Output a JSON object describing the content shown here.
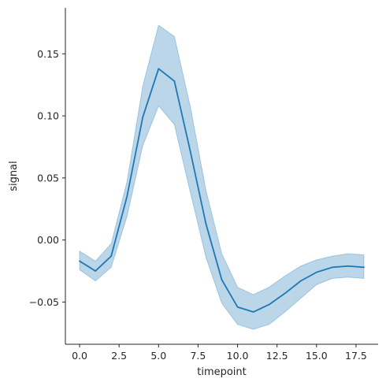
{
  "chart_data": {
    "type": "line",
    "xlabel": "timepoint",
    "ylabel": "signal",
    "xlim": [
      -0.9,
      18.9
    ],
    "ylim": [
      -0.084,
      0.187
    ],
    "x_ticks": [
      {
        "value": 0.0,
        "label": "0.0"
      },
      {
        "value": 2.5,
        "label": "2.5"
      },
      {
        "value": 5.0,
        "label": "5.0"
      },
      {
        "value": 7.5,
        "label": "7.5"
      },
      {
        "value": 10.0,
        "label": "10.0"
      },
      {
        "value": 12.5,
        "label": "12.5"
      },
      {
        "value": 15.0,
        "label": "15.0"
      },
      {
        "value": 17.5,
        "label": "17.5"
      }
    ],
    "y_ticks": [
      {
        "value": -0.05,
        "label": "−0.05"
      },
      {
        "value": 0.0,
        "label": "0.00"
      },
      {
        "value": 0.05,
        "label": "0.05"
      },
      {
        "value": 0.1,
        "label": "0.10"
      },
      {
        "value": 0.15,
        "label": "0.15"
      }
    ],
    "grid": false,
    "line_color": "#1f77b4",
    "band_color": "#1f77b4",
    "series": [
      {
        "x": [
          0,
          1,
          2,
          3,
          4,
          5,
          6,
          7,
          8,
          9,
          10,
          11,
          12,
          13,
          14,
          15,
          16,
          17,
          18
        ],
        "values": [
          -0.017,
          -0.025,
          -0.013,
          0.035,
          0.099,
          0.138,
          0.128,
          0.072,
          0.013,
          -0.032,
          -0.054,
          -0.058,
          -0.052,
          -0.043,
          -0.033,
          -0.026,
          -0.022,
          -0.021,
          -0.022
        ],
        "ci_low": [
          -0.024,
          -0.033,
          -0.022,
          0.019,
          0.076,
          0.108,
          0.093,
          0.039,
          -0.014,
          -0.051,
          -0.068,
          -0.072,
          -0.068,
          -0.058,
          -0.047,
          -0.036,
          -0.031,
          -0.03,
          -0.031
        ],
        "ci_high": [
          -0.009,
          -0.017,
          -0.003,
          0.047,
          0.124,
          0.173,
          0.164,
          0.108,
          0.04,
          -0.011,
          -0.038,
          -0.044,
          -0.038,
          -0.029,
          -0.021,
          -0.016,
          -0.013,
          -0.011,
          -0.012
        ]
      }
    ]
  }
}
